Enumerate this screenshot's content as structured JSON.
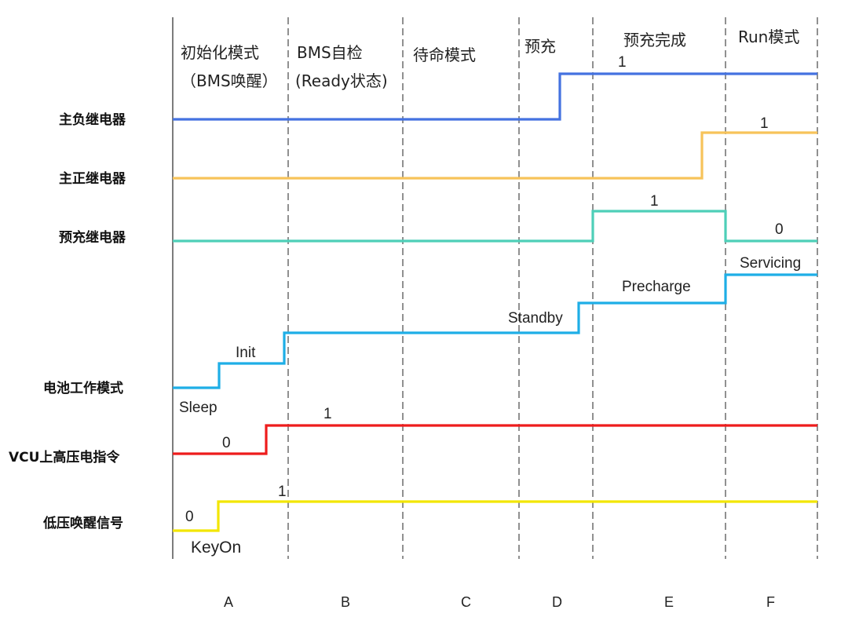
{
  "phase_titles": [
    {
      "id": "A",
      "line1": "初始化模式",
      "line2": "（BMS唤醒）"
    },
    {
      "id": "B",
      "line1": "BMS自检",
      "line2": "(Ready状态)"
    },
    {
      "id": "C",
      "line1": "待命模式",
      "line2": ""
    },
    {
      "id": "D",
      "line1": "预充",
      "line2": ""
    },
    {
      "id": "E",
      "line1": "预充完成",
      "line2": ""
    },
    {
      "id": "F",
      "line1": "Run模式",
      "line2": ""
    }
  ],
  "phase_letters": [
    "A",
    "B",
    "C",
    "D",
    "E",
    "F"
  ],
  "signals": [
    {
      "key": "main_negative",
      "label": "主负继电器",
      "color": "#4472e0"
    },
    {
      "key": "main_positive",
      "label": "主正继电器",
      "color": "#f7c35a"
    },
    {
      "key": "precharge",
      "label": "预充继电器",
      "color": "#4ecfb8"
    },
    {
      "key": "battery_mode",
      "label": "电池工作模式",
      "color": "#1eaee6"
    },
    {
      "key": "vcu_hv_cmd",
      "label": "VCU上高压电指令",
      "color": "#ee1c1c"
    },
    {
      "key": "lv_wakeup",
      "label": "低压唤醒信号",
      "color": "#f2e600"
    }
  ],
  "annotations": {
    "main_negative_high": "1",
    "main_positive_high": "1",
    "precharge_high": "1",
    "precharge_low": "0",
    "mode_sleep": "Sleep",
    "mode_init": "Init",
    "mode_standby": "Standby",
    "mode_precharge": "Precharge",
    "mode_servicing": "Servicing",
    "vcu_low": "0",
    "vcu_high": "1",
    "wake_low": "0",
    "wake_high": "1",
    "wake_event": "KeyOn"
  }
}
